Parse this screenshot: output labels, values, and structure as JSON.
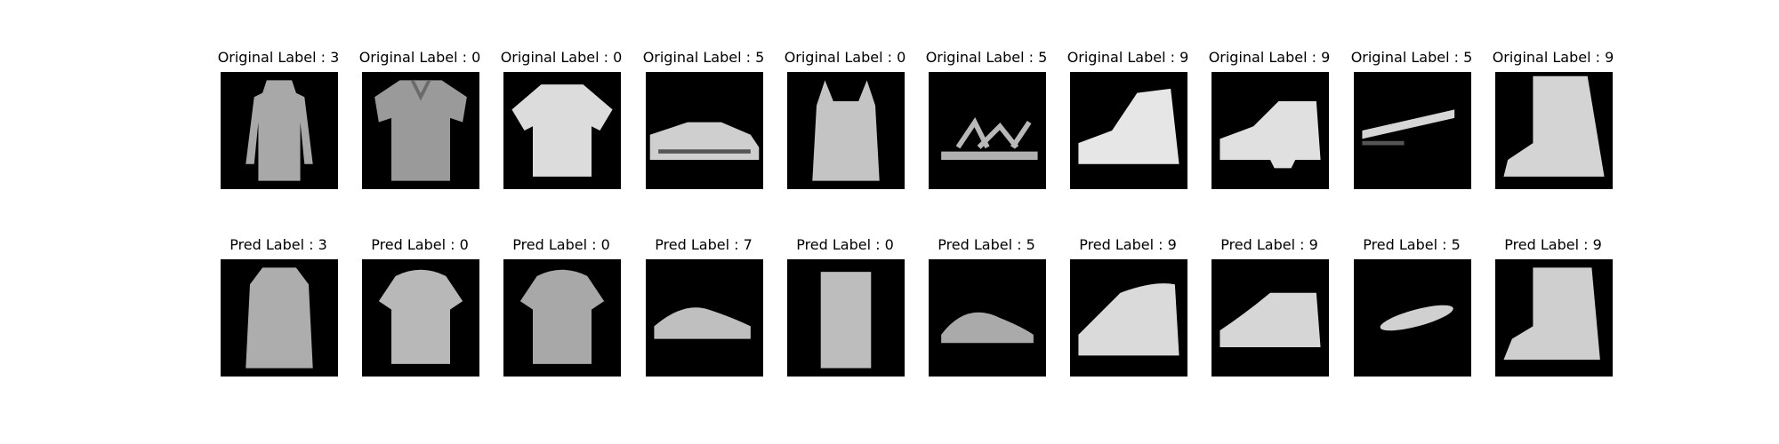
{
  "figure": {
    "original_row": [
      {
        "label": "Original Label : 3",
        "kind": "dress"
      },
      {
        "label": "Original Label : 0",
        "kind": "tshirt"
      },
      {
        "label": "Original Label : 0",
        "kind": "tshirt-bright"
      },
      {
        "label": "Original Label : 5",
        "kind": "sneaker-low"
      },
      {
        "label": "Original Label : 0",
        "kind": "tank"
      },
      {
        "label": "Original Label : 5",
        "kind": "sandal"
      },
      {
        "label": "Original Label : 9",
        "kind": "highshoe"
      },
      {
        "label": "Original Label : 9",
        "kind": "boot-low"
      },
      {
        "label": "Original Label : 5",
        "kind": "sandal-thin"
      },
      {
        "label": "Original Label : 9",
        "kind": "boot"
      }
    ],
    "pred_row": [
      {
        "label": "Pred Label : 3",
        "kind": "dress-blur"
      },
      {
        "label": "Pred Label : 0",
        "kind": "tshirt-blur"
      },
      {
        "label": "Pred Label : 0",
        "kind": "tshirt-blur2"
      },
      {
        "label": "Pred Label : 7",
        "kind": "sneaker-blur"
      },
      {
        "label": "Pred Label : 0",
        "kind": "tank-blur"
      },
      {
        "label": "Pred Label : 5",
        "kind": "sandal-blur"
      },
      {
        "label": "Pred Label : 9",
        "kind": "shoe-blur"
      },
      {
        "label": "Pred Label : 9",
        "kind": "boot-low-blur"
      },
      {
        "label": "Pred Label : 5",
        "kind": "thin-blur"
      },
      {
        "label": "Pred Label : 9",
        "kind": "boot-blur"
      }
    ]
  }
}
